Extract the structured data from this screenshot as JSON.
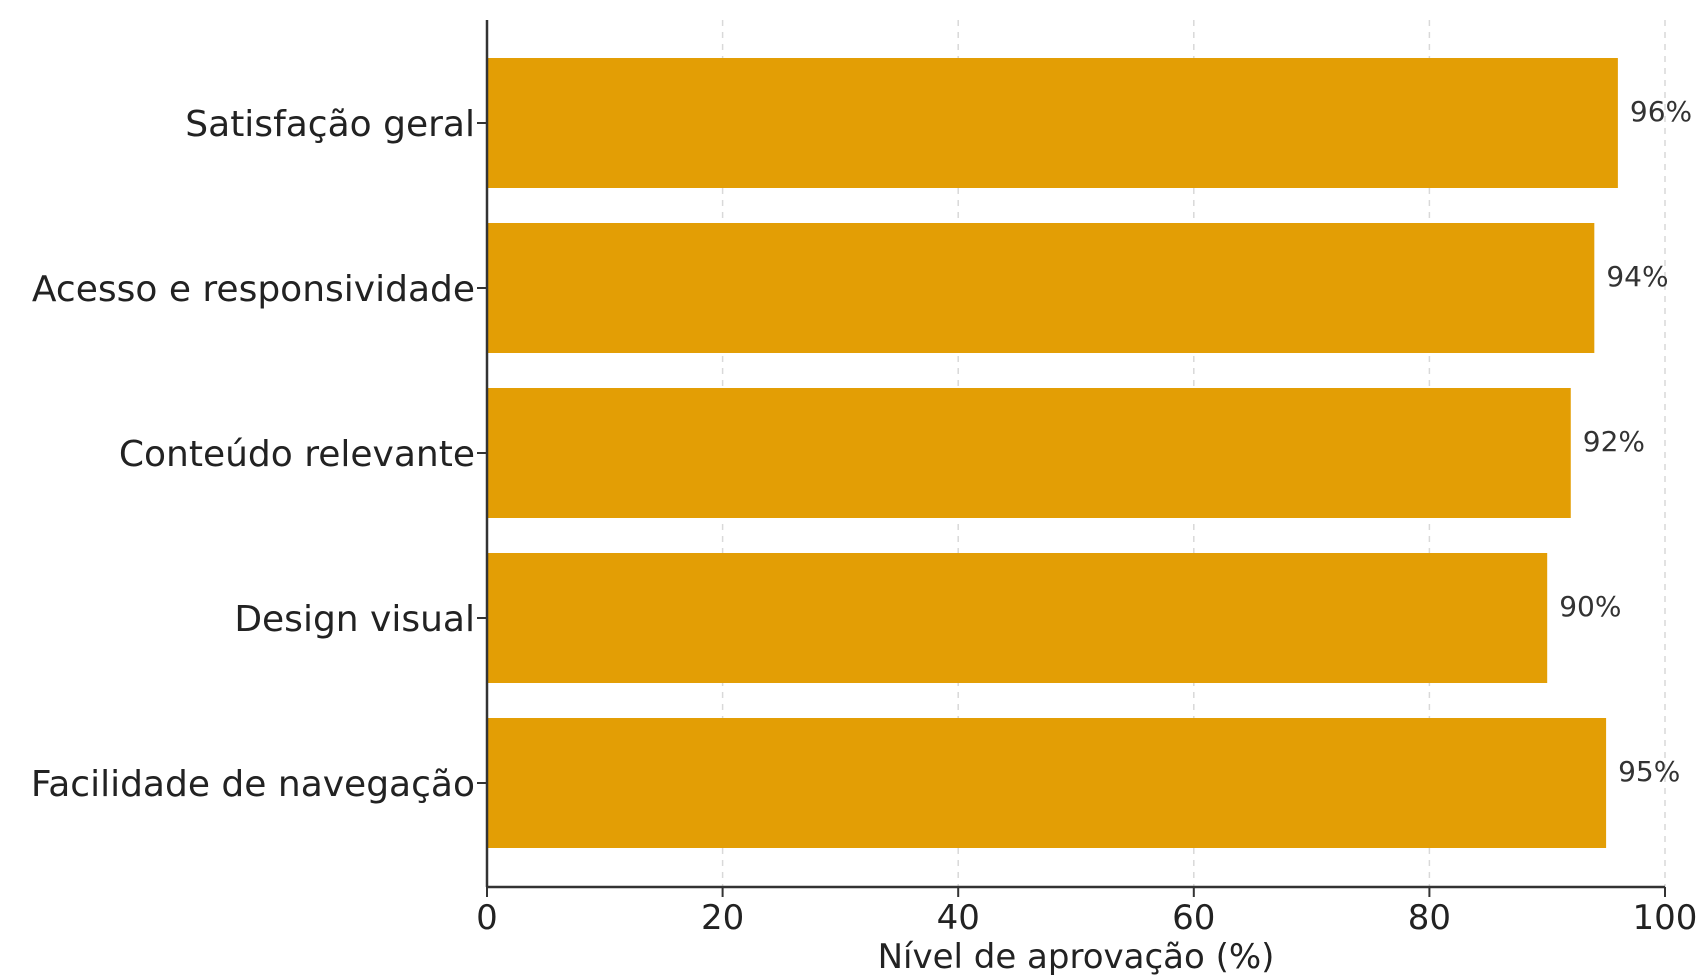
{
  "chart_data": {
    "type": "bar",
    "orientation": "horizontal",
    "title": "",
    "xlabel": "Nível de aprovação (%)",
    "ylabel": "",
    "xlim": [
      0,
      100
    ],
    "xticks": [
      "0",
      "20",
      "40",
      "60",
      "80",
      "100"
    ],
    "grid": true,
    "bar_color": "#E39E05",
    "categories": [
      "Satisfação geral",
      "Acesso e responsividade",
      "Conteúdo relevante",
      "Design visual",
      "Facilidade de navegação"
    ],
    "values": [
      96,
      94,
      92,
      90,
      95
    ],
    "value_labels": [
      "96%",
      "94%",
      "92%",
      "90%",
      "95%"
    ]
  }
}
